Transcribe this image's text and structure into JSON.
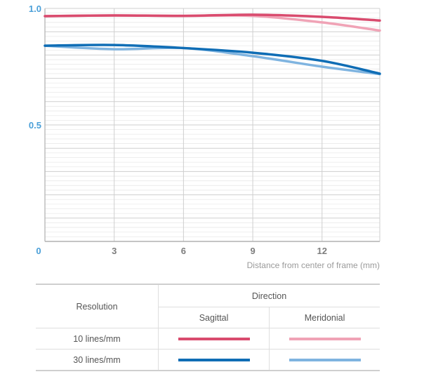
{
  "chart_data": {
    "type": "line",
    "title": "",
    "xlabel": "Distance from center of frame (mm)",
    "ylabel": "",
    "xlim": [
      0,
      14.5
    ],
    "ylim": [
      0,
      1.0
    ],
    "xticks": [
      0,
      3,
      6,
      9,
      12
    ],
    "yticks": [
      0.5,
      1.0
    ],
    "x_tick_labels": [
      "0",
      "3",
      "6",
      "9",
      "12"
    ],
    "y_tick_labels": [
      "0.5",
      "1.0"
    ],
    "grid": true,
    "legend_placement": "table below chart",
    "series": [
      {
        "key": "s10",
        "color": "#d94b6e",
        "points": [
          [
            0,
            0.967
          ],
          [
            3,
            0.97
          ],
          [
            6,
            0.968
          ],
          [
            9,
            0.973
          ],
          [
            12,
            0.964
          ],
          [
            14.5,
            0.948
          ]
        ]
      },
      {
        "key": "m10",
        "color": "#f0a3b6",
        "points": [
          [
            0,
            0.967
          ],
          [
            3,
            0.97
          ],
          [
            6,
            0.968
          ],
          [
            9,
            0.968
          ],
          [
            12,
            0.94
          ],
          [
            14.5,
            0.905
          ]
        ]
      },
      {
        "key": "s30",
        "color": "#0f6db5",
        "points": [
          [
            0,
            0.84
          ],
          [
            3,
            0.843
          ],
          [
            6,
            0.83
          ],
          [
            9,
            0.81
          ],
          [
            12,
            0.775
          ],
          [
            14.5,
            0.72
          ]
        ]
      },
      {
        "key": "m30",
        "color": "#7fb4e0",
        "points": [
          [
            0,
            0.84
          ],
          [
            3,
            0.825
          ],
          [
            6,
            0.83
          ],
          [
            9,
            0.795
          ],
          [
            12,
            0.75
          ],
          [
            14.5,
            0.718
          ]
        ]
      }
    ]
  },
  "legend": {
    "resolution_header": "Resolution",
    "direction_header": "Direction",
    "sagittal_header": "Sagittal",
    "meridional_header": "Meridonial",
    "rows": [
      {
        "label": "10 lines/mm",
        "sagittal_color": "#d94b6e",
        "meridional_color": "#f0a3b6"
      },
      {
        "label": "30 lines/mm",
        "sagittal_color": "#0f6db5",
        "meridional_color": "#7fb4e0"
      }
    ]
  },
  "colors": {
    "zero_and_y_ticks": "#4a9fd8",
    "x_ticks": "#7d7d7d",
    "grid_minor": "#e9e9e9",
    "grid_major": "#cfcfcf"
  }
}
